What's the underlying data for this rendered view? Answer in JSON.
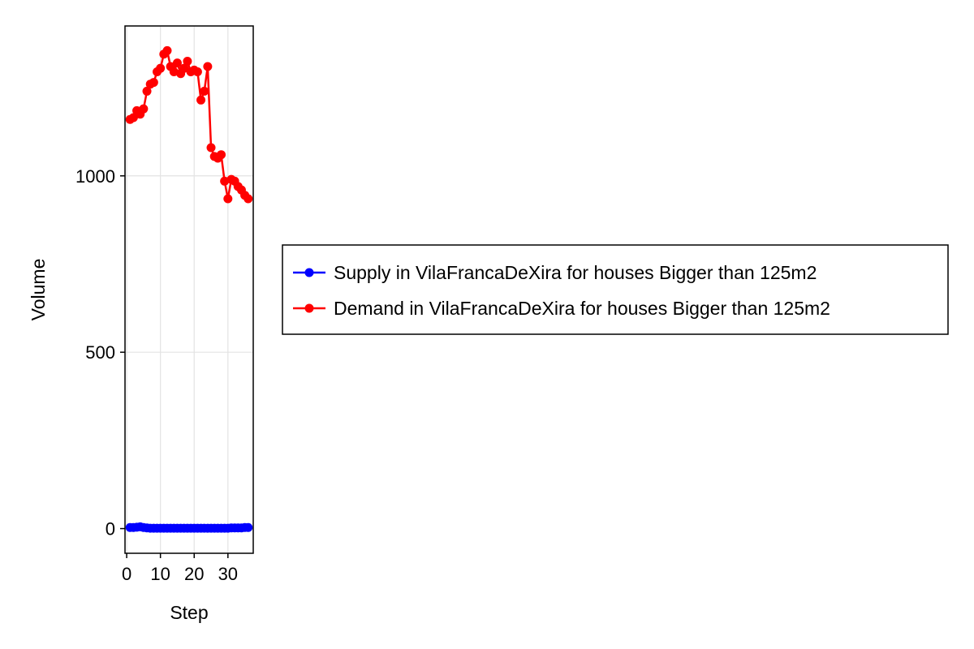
{
  "chart_data": {
    "type": "line",
    "title": "",
    "xlabel": "Step",
    "ylabel": "Volume",
    "xlim": [
      -0.5,
      37.5
    ],
    "ylim": [
      -70,
      1425
    ],
    "x_ticks": [
      0,
      10,
      20,
      30
    ],
    "y_ticks": [
      0,
      500,
      1000
    ],
    "grid": true,
    "legend_position": "right",
    "series": [
      {
        "name": "Supply in VilaFrancaDeXira for houses Bigger than 125m2",
        "color": "#0000ff",
        "x": [
          1,
          2,
          3,
          4,
          5,
          6,
          7,
          8,
          9,
          10,
          11,
          12,
          13,
          14,
          15,
          16,
          17,
          18,
          19,
          20,
          21,
          22,
          23,
          24,
          25,
          26,
          27,
          28,
          29,
          30,
          31,
          32,
          33,
          34,
          35,
          36
        ],
        "values": [
          3,
          3,
          4,
          5,
          3,
          2,
          1,
          1,
          1,
          1,
          1,
          1,
          1,
          1,
          1,
          1,
          1,
          1,
          1,
          1,
          1,
          1,
          1,
          1,
          1,
          1,
          1,
          1,
          1,
          1,
          2,
          2,
          2,
          2,
          3,
          3
        ]
      },
      {
        "name": "Demand in VilaFrancaDeXira for houses Bigger than 125m2",
        "color": "#ff0000",
        "x": [
          1,
          2,
          3,
          4,
          5,
          6,
          7,
          8,
          9,
          10,
          11,
          12,
          13,
          14,
          15,
          16,
          17,
          18,
          19,
          20,
          21,
          22,
          23,
          24,
          25,
          26,
          27,
          28,
          29,
          30,
          31,
          32,
          33,
          34,
          35,
          36
        ],
        "values": [
          1160,
          1165,
          1185,
          1175,
          1190,
          1240,
          1260,
          1265,
          1295,
          1305,
          1345,
          1355,
          1310,
          1295,
          1320,
          1290,
          1305,
          1325,
          1295,
          1300,
          1295,
          1215,
          1240,
          1310,
          1080,
          1055,
          1050,
          1060,
          985,
          935,
          990,
          985,
          970,
          960,
          945,
          935
        ]
      }
    ]
  }
}
